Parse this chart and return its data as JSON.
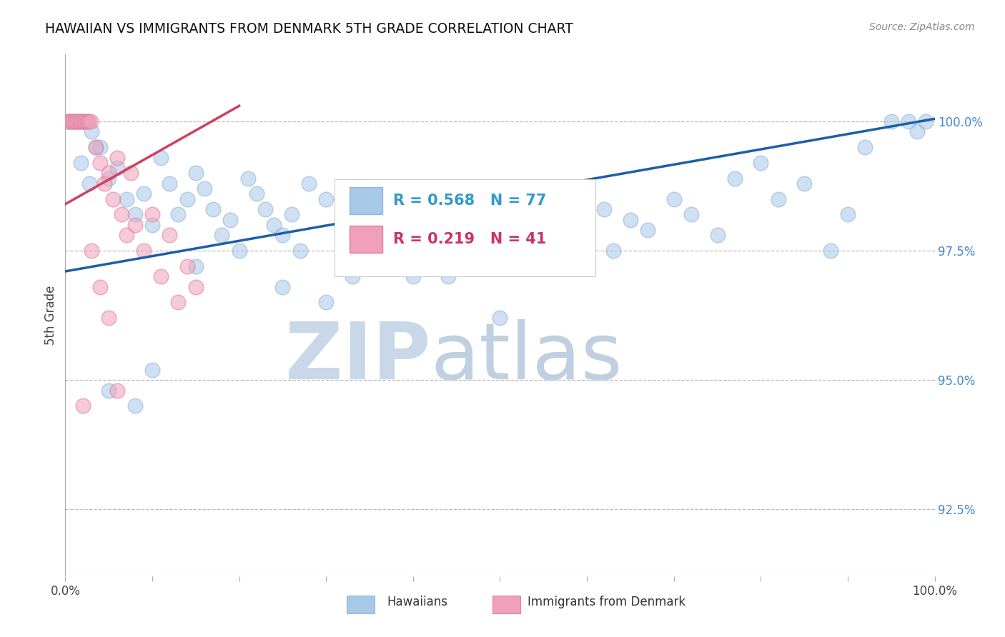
{
  "title": "HAWAIIAN VS IMMIGRANTS FROM DENMARK 5TH GRADE CORRELATION CHART",
  "source_text": "Source: ZipAtlas.com",
  "ylabel": "5th Grade",
  "y_tick_labels": [
    "92.5%",
    "95.0%",
    "97.5%",
    "100.0%"
  ],
  "y_tick_values": [
    92.5,
    95.0,
    97.5,
    100.0
  ],
  "ylim": [
    91.2,
    101.3
  ],
  "xlim": [
    0.0,
    100.0
  ],
  "blue_R": 0.568,
  "blue_N": 77,
  "pink_R": 0.219,
  "pink_N": 41,
  "blue_color": "#A8C8E8",
  "pink_color": "#F0A0B8",
  "blue_edge_color": "#90B8D8",
  "pink_edge_color": "#E080A0",
  "blue_line_color": "#1E5EA8",
  "pink_line_color": "#D04060",
  "watermark_zip_color": "#C8D8E8",
  "watermark_atlas_color": "#C0D0E0",
  "legend_blue_label": "Hawaiians",
  "legend_pink_label": "Immigrants from Denmark",
  "background_color": "#FFFFFF",
  "grid_color": "#BBBBBB",
  "title_color": "#111111",
  "axis_label_color": "#444444",
  "right_tick_color": "#4488CC",
  "legend_R_color_blue": "#3399CC",
  "legend_R_color_pink": "#CC3366",
  "blue_line_x0": 0.0,
  "blue_line_y0": 97.1,
  "blue_line_x1": 100.0,
  "blue_line_y1": 100.05,
  "pink_line_x0": 0.0,
  "pink_line_y0": 98.4,
  "pink_line_x1": 20.0,
  "pink_line_y1": 100.3
}
